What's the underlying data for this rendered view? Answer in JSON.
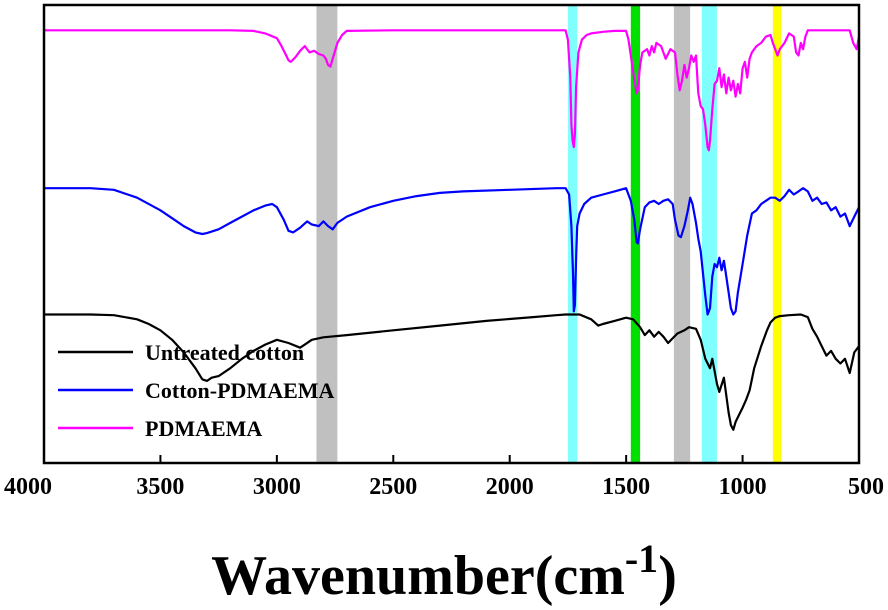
{
  "chart_data": {
    "type": "line",
    "xlabel": "Wavenumber(cm",
    "xlabel_superscript": "-1",
    "xlabel_close": ")",
    "xlim": [
      4000,
      500
    ],
    "x_reversed": true,
    "xticks": [
      4000,
      3500,
      3000,
      2500,
      2000,
      1500,
      1000,
      500
    ],
    "y_ticks_visible": false,
    "grid": false,
    "legend_position": "bottom-left",
    "highlight_bands": [
      {
        "from": 2830,
        "to": 2740,
        "color": "#c0c0c0"
      },
      {
        "from": 1750,
        "to": 1710,
        "color": "#80ffff"
      },
      {
        "from": 1480,
        "to": 1440,
        "color": "#00e000"
      },
      {
        "from": 1295,
        "to": 1225,
        "color": "#c0c0c0"
      },
      {
        "from": 1175,
        "to": 1110,
        "color": "#80ffff"
      },
      {
        "from": 870,
        "to": 835,
        "color": "#ffff00"
      }
    ],
    "series": [
      {
        "name": "Untreated cotton",
        "color": "#000000",
        "points": [
          [
            4000,
            5.0
          ],
          [
            3800,
            5.0
          ],
          [
            3700,
            4.98
          ],
          [
            3600,
            4.85
          ],
          [
            3550,
            4.7
          ],
          [
            3500,
            4.5
          ],
          [
            3450,
            4.2
          ],
          [
            3400,
            3.8
          ],
          [
            3350,
            3.3
          ],
          [
            3320,
            2.95
          ],
          [
            3300,
            2.9
          ],
          [
            3280,
            3.0
          ],
          [
            3250,
            3.05
          ],
          [
            3200,
            3.3
          ],
          [
            3150,
            3.6
          ],
          [
            3100,
            3.85
          ],
          [
            3050,
            4.05
          ],
          [
            3000,
            4.2
          ],
          [
            2950,
            4.1
          ],
          [
            2900,
            3.95
          ],
          [
            2880,
            4.05
          ],
          [
            2850,
            4.2
          ],
          [
            2800,
            4.28
          ],
          [
            2700,
            4.35
          ],
          [
            2500,
            4.5
          ],
          [
            2300,
            4.65
          ],
          [
            2100,
            4.8
          ],
          [
            1900,
            4.92
          ],
          [
            1800,
            4.98
          ],
          [
            1760,
            5.0
          ],
          [
            1700,
            5.0
          ],
          [
            1650,
            4.85
          ],
          [
            1620,
            4.65
          ],
          [
            1600,
            4.7
          ],
          [
            1550,
            4.8
          ],
          [
            1500,
            4.9
          ],
          [
            1470,
            4.85
          ],
          [
            1440,
            4.6
          ],
          [
            1420,
            4.35
          ],
          [
            1400,
            4.5
          ],
          [
            1380,
            4.3
          ],
          [
            1360,
            4.45
          ],
          [
            1340,
            4.3
          ],
          [
            1320,
            4.1
          ],
          [
            1300,
            4.25
          ],
          [
            1280,
            4.4
          ],
          [
            1250,
            4.5
          ],
          [
            1230,
            4.6
          ],
          [
            1200,
            4.55
          ],
          [
            1180,
            4.2
          ],
          [
            1160,
            3.6
          ],
          [
            1140,
            3.3
          ],
          [
            1130,
            3.6
          ],
          [
            1110,
            2.8
          ],
          [
            1100,
            2.55
          ],
          [
            1080,
            3.0
          ],
          [
            1060,
            1.9
          ],
          [
            1050,
            1.5
          ],
          [
            1040,
            1.35
          ],
          [
            1030,
            1.6
          ],
          [
            1010,
            1.9
          ],
          [
            1000,
            2.05
          ],
          [
            985,
            2.3
          ],
          [
            970,
            2.6
          ],
          [
            950,
            3.3
          ],
          [
            920,
            4.0
          ],
          [
            895,
            4.5
          ],
          [
            880,
            4.75
          ],
          [
            860,
            4.9
          ],
          [
            840,
            4.95
          ],
          [
            800,
            4.98
          ],
          [
            750,
            5.0
          ],
          [
            720,
            4.92
          ],
          [
            700,
            4.55
          ],
          [
            680,
            4.3
          ],
          [
            660,
            4.0
          ],
          [
            640,
            3.7
          ],
          [
            620,
            3.85
          ],
          [
            600,
            3.6
          ],
          [
            580,
            3.45
          ],
          [
            560,
            3.6
          ],
          [
            540,
            3.15
          ],
          [
            520,
            3.8
          ],
          [
            500,
            4.0
          ]
        ]
      },
      {
        "name": "Cotton-PDMAEMA",
        "color": "#0000ff",
        "points": [
          [
            4000,
            9.0
          ],
          [
            3800,
            9.0
          ],
          [
            3700,
            8.95
          ],
          [
            3600,
            8.7
          ],
          [
            3500,
            8.3
          ],
          [
            3450,
            8.05
          ],
          [
            3400,
            7.8
          ],
          [
            3350,
            7.6
          ],
          [
            3320,
            7.55
          ],
          [
            3300,
            7.58
          ],
          [
            3250,
            7.7
          ],
          [
            3200,
            7.9
          ],
          [
            3150,
            8.1
          ],
          [
            3100,
            8.3
          ],
          [
            3050,
            8.45
          ],
          [
            3020,
            8.5
          ],
          [
            3000,
            8.4
          ],
          [
            2970,
            8.0
          ],
          [
            2950,
            7.65
          ],
          [
            2930,
            7.6
          ],
          [
            2900,
            7.75
          ],
          [
            2870,
            7.95
          ],
          [
            2850,
            7.85
          ],
          [
            2820,
            7.8
          ],
          [
            2800,
            7.95
          ],
          [
            2780,
            7.8
          ],
          [
            2760,
            7.7
          ],
          [
            2740,
            7.9
          ],
          [
            2700,
            8.1
          ],
          [
            2600,
            8.4
          ],
          [
            2500,
            8.6
          ],
          [
            2400,
            8.75
          ],
          [
            2300,
            8.85
          ],
          [
            2200,
            8.9
          ],
          [
            2000,
            8.95
          ],
          [
            1800,
            9.0
          ],
          [
            1760,
            9.0
          ],
          [
            1745,
            8.8
          ],
          [
            1735,
            7.8
          ],
          [
            1728,
            6.2
          ],
          [
            1725,
            5.1
          ],
          [
            1720,
            5.3
          ],
          [
            1715,
            6.8
          ],
          [
            1710,
            7.8
          ],
          [
            1700,
            8.2
          ],
          [
            1680,
            8.5
          ],
          [
            1650,
            8.7
          ],
          [
            1600,
            8.8
          ],
          [
            1550,
            8.9
          ],
          [
            1500,
            9.0
          ],
          [
            1480,
            8.6
          ],
          [
            1465,
            8.0
          ],
          [
            1455,
            7.3
          ],
          [
            1450,
            7.25
          ],
          [
            1440,
            7.7
          ],
          [
            1420,
            8.4
          ],
          [
            1400,
            8.55
          ],
          [
            1380,
            8.6
          ],
          [
            1360,
            8.5
          ],
          [
            1340,
            8.6
          ],
          [
            1320,
            8.65
          ],
          [
            1300,
            8.5
          ],
          [
            1290,
            8.0
          ],
          [
            1275,
            7.5
          ],
          [
            1265,
            7.45
          ],
          [
            1250,
            7.8
          ],
          [
            1235,
            8.3
          ],
          [
            1225,
            8.7
          ],
          [
            1215,
            8.5
          ],
          [
            1200,
            7.9
          ],
          [
            1190,
            7.4
          ],
          [
            1180,
            7.0
          ],
          [
            1170,
            6.3
          ],
          [
            1160,
            5.6
          ],
          [
            1150,
            5.0
          ],
          [
            1140,
            5.2
          ],
          [
            1130,
            6.2
          ],
          [
            1120,
            6.6
          ],
          [
            1110,
            6.5
          ],
          [
            1100,
            6.8
          ],
          [
            1090,
            6.4
          ],
          [
            1080,
            6.7
          ],
          [
            1070,
            6.2
          ],
          [
            1060,
            5.7
          ],
          [
            1050,
            5.2
          ],
          [
            1040,
            5.0
          ],
          [
            1030,
            5.1
          ],
          [
            1020,
            5.7
          ],
          [
            1000,
            6.6
          ],
          [
            980,
            7.5
          ],
          [
            960,
            8.2
          ],
          [
            940,
            8.3
          ],
          [
            920,
            8.5
          ],
          [
            900,
            8.6
          ],
          [
            880,
            8.7
          ],
          [
            860,
            8.7
          ],
          [
            840,
            8.6
          ],
          [
            820,
            8.75
          ],
          [
            800,
            8.95
          ],
          [
            780,
            8.8
          ],
          [
            760,
            8.9
          ],
          [
            740,
            9.0
          ],
          [
            720,
            8.9
          ],
          [
            700,
            8.6
          ],
          [
            680,
            8.7
          ],
          [
            660,
            8.5
          ],
          [
            640,
            8.55
          ],
          [
            620,
            8.3
          ],
          [
            600,
            8.4
          ],
          [
            580,
            8.1
          ],
          [
            560,
            8.2
          ],
          [
            540,
            7.8
          ],
          [
            520,
            8.1
          ],
          [
            500,
            8.4
          ]
        ]
      },
      {
        "name": "PDMAEMA",
        "color": "#ff00ff",
        "points": [
          [
            4000,
            14.0
          ],
          [
            3700,
            14.0
          ],
          [
            3400,
            14.0
          ],
          [
            3200,
            14.0
          ],
          [
            3100,
            13.98
          ],
          [
            3050,
            13.9
          ],
          [
            3000,
            13.75
          ],
          [
            2980,
            13.5
          ],
          [
            2960,
            13.2
          ],
          [
            2950,
            13.05
          ],
          [
            2940,
            13.0
          ],
          [
            2920,
            13.15
          ],
          [
            2900,
            13.35
          ],
          [
            2880,
            13.5
          ],
          [
            2860,
            13.3
          ],
          [
            2840,
            13.35
          ],
          [
            2820,
            13.25
          ],
          [
            2800,
            13.2
          ],
          [
            2790,
            13.1
          ],
          [
            2780,
            12.9
          ],
          [
            2770,
            12.85
          ],
          [
            2760,
            13.1
          ],
          [
            2740,
            13.6
          ],
          [
            2720,
            13.85
          ],
          [
            2700,
            13.98
          ],
          [
            2500,
            14.0
          ],
          [
            2000,
            14.0
          ],
          [
            1800,
            14.0
          ],
          [
            1760,
            14.0
          ],
          [
            1750,
            13.7
          ],
          [
            1740,
            12.5
          ],
          [
            1735,
            11.0
          ],
          [
            1730,
            10.5
          ],
          [
            1725,
            10.3
          ],
          [
            1720,
            10.7
          ],
          [
            1715,
            12.2
          ],
          [
            1705,
            13.3
          ],
          [
            1690,
            13.7
          ],
          [
            1670,
            13.85
          ],
          [
            1650,
            13.9
          ],
          [
            1600,
            13.95
          ],
          [
            1550,
            13.98
          ],
          [
            1500,
            13.98
          ],
          [
            1490,
            13.7
          ],
          [
            1480,
            13.2
          ],
          [
            1470,
            12.7
          ],
          [
            1460,
            12.2
          ],
          [
            1455,
            12.0
          ],
          [
            1450,
            12.1
          ],
          [
            1440,
            12.9
          ],
          [
            1430,
            13.3
          ],
          [
            1410,
            13.4
          ],
          [
            1400,
            13.2
          ],
          [
            1390,
            13.5
          ],
          [
            1380,
            13.3
          ],
          [
            1370,
            13.6
          ],
          [
            1350,
            13.5
          ],
          [
            1330,
            13.1
          ],
          [
            1310,
            13.4
          ],
          [
            1290,
            13.3
          ],
          [
            1280,
            12.6
          ],
          [
            1270,
            12.1
          ],
          [
            1260,
            12.4
          ],
          [
            1250,
            12.9
          ],
          [
            1240,
            12.5
          ],
          [
            1230,
            12.8
          ],
          [
            1220,
            13.2
          ],
          [
            1210,
            13.0
          ],
          [
            1200,
            13.2
          ],
          [
            1190,
            12.0
          ],
          [
            1180,
            11.6
          ],
          [
            1170,
            11.5
          ],
          [
            1160,
            11.0
          ],
          [
            1150,
            10.3
          ],
          [
            1145,
            10.2
          ],
          [
            1140,
            10.5
          ],
          [
            1130,
            11.5
          ],
          [
            1120,
            12.3
          ],
          [
            1110,
            12.4
          ],
          [
            1100,
            12.8
          ],
          [
            1090,
            12.2
          ],
          [
            1080,
            12.6
          ],
          [
            1070,
            12.0
          ],
          [
            1060,
            12.5
          ],
          [
            1050,
            12.1
          ],
          [
            1040,
            12.4
          ],
          [
            1030,
            11.9
          ],
          [
            1020,
            12.3
          ],
          [
            1010,
            12.0
          ],
          [
            1000,
            12.8
          ],
          [
            990,
            13.0
          ],
          [
            980,
            12.5
          ],
          [
            970,
            13.1
          ],
          [
            960,
            13.3
          ],
          [
            940,
            13.5
          ],
          [
            920,
            13.6
          ],
          [
            900,
            13.8
          ],
          [
            880,
            13.85
          ],
          [
            870,
            13.6
          ],
          [
            860,
            13.4
          ],
          [
            850,
            13.2
          ],
          [
            840,
            13.4
          ],
          [
            820,
            13.6
          ],
          [
            800,
            13.9
          ],
          [
            780,
            13.8
          ],
          [
            770,
            13.3
          ],
          [
            760,
            13.2
          ],
          [
            750,
            13.6
          ],
          [
            740,
            13.4
          ],
          [
            730,
            13.8
          ],
          [
            720,
            14.0
          ],
          [
            700,
            14.0
          ],
          [
            600,
            14.0
          ],
          [
            540,
            14.0
          ],
          [
            525,
            13.6
          ],
          [
            510,
            13.4
          ],
          [
            500,
            13.8
          ]
        ]
      }
    ]
  }
}
